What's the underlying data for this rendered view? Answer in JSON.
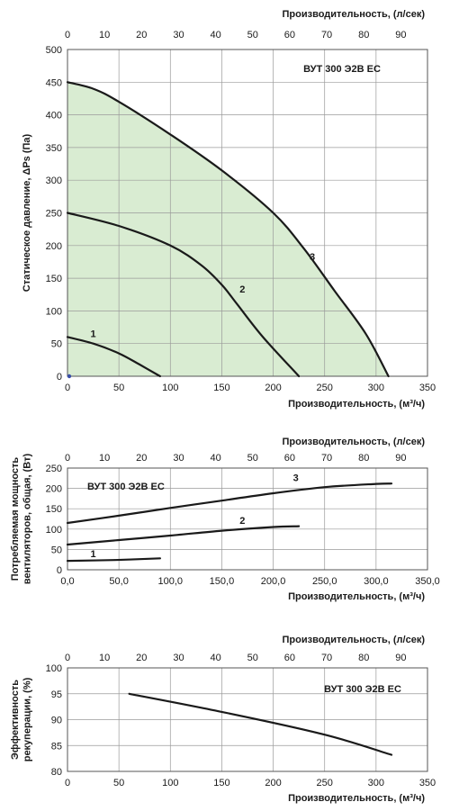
{
  "chart_data": [
    {
      "type": "line",
      "title": "ВУТ 300 Э2В ЕС",
      "xlabel": "Производительность, (м³/ч)",
      "x2label": "Производительность, (л/сек)",
      "ylabel": "Статическое давление, ΔPs (Па)",
      "xlim": [
        0,
        350
      ],
      "ylim": [
        0,
        500
      ],
      "x2lim": [
        0,
        97.2
      ],
      "xticks": [
        "0",
        "50",
        "100",
        "150",
        "200",
        "250",
        "300",
        "350"
      ],
      "x2ticks": [
        "0",
        "10",
        "20",
        "30",
        "40",
        "50",
        "60",
        "70",
        "80",
        "90"
      ],
      "yticks": [
        "0",
        "50",
        "100",
        "150",
        "200",
        "250",
        "300",
        "350",
        "400",
        "450",
        "500"
      ],
      "grid": true,
      "fill_color": "#d9ecd2",
      "series": [
        {
          "name": "1",
          "points": [
            [
              0,
              60
            ],
            [
              25,
              50
            ],
            [
              50,
              35
            ],
            [
              70,
              18
            ],
            [
              90,
              0
            ]
          ]
        },
        {
          "name": "2",
          "points": [
            [
              0,
              250
            ],
            [
              50,
              230
            ],
            [
              100,
              200
            ],
            [
              130,
              170
            ],
            [
              150,
              140
            ],
            [
              165,
              110
            ],
            [
              190,
              60
            ],
            [
              225,
              0
            ]
          ]
        },
        {
          "name": "3",
          "points": [
            [
              0,
              450
            ],
            [
              25,
              440
            ],
            [
              50,
              420
            ],
            [
              100,
              370
            ],
            [
              150,
              315
            ],
            [
              200,
              250
            ],
            [
              230,
              195
            ],
            [
              260,
              130
            ],
            [
              290,
              65
            ],
            [
              312,
              0
            ]
          ]
        }
      ],
      "label_positions": {
        "1": [
          25,
          60
        ],
        "2": [
          170,
          128
        ],
        "3": [
          238,
          178
        ]
      }
    },
    {
      "type": "line",
      "title": "ВУТ 300 Э2В ЕС",
      "xlabel": "Производительность, (м³/ч)",
      "x2label": "Производительность, (л/сек)",
      "ylabel": "Потребляемая мощность вентиляторов, общая, (Вт)",
      "xlim": [
        0,
        350
      ],
      "ylim": [
        0,
        250
      ],
      "x2lim": [
        0,
        97.2
      ],
      "xticks": [
        "0,0",
        "50,0",
        "100,0",
        "150,0",
        "200,0",
        "250,0",
        "300,0",
        "350,0"
      ],
      "x2ticks": [
        "0",
        "10",
        "20",
        "30",
        "40",
        "50",
        "60",
        "70",
        "80",
        "90"
      ],
      "yticks": [
        "0",
        "50",
        "100",
        "150",
        "200",
        "250"
      ],
      "grid": true,
      "series": [
        {
          "name": "1",
          "points": [
            [
              0,
              22
            ],
            [
              45,
              24
            ],
            [
              90,
              28
            ]
          ]
        },
        {
          "name": "2",
          "points": [
            [
              0,
              62
            ],
            [
              50,
              73
            ],
            [
              100,
              84
            ],
            [
              150,
              96
            ],
            [
              200,
              105
            ],
            [
              225,
              107
            ]
          ]
        },
        {
          "name": "3",
          "points": [
            [
              0,
              115
            ],
            [
              50,
              133
            ],
            [
              100,
              152
            ],
            [
              150,
              170
            ],
            [
              200,
              188
            ],
            [
              250,
              203
            ],
            [
              300,
              211
            ],
            [
              315,
              212
            ]
          ]
        }
      ],
      "label_positions": {
        "1": [
          25,
          31
        ],
        "2": [
          170,
          113
        ],
        "3": [
          222,
          218
        ]
      }
    },
    {
      "type": "line",
      "title": "ВУТ 300 Э2В ЕС",
      "xlabel": "Производительность, (м³/ч)",
      "x2label": "Производительность, (л/сек)",
      "ylabel": "Эффективность рекуперации, (%)",
      "xlim": [
        0,
        350
      ],
      "ylim": [
        80,
        100
      ],
      "x2lim": [
        0,
        97.2
      ],
      "xticks": [
        "0",
        "50",
        "100",
        "150",
        "200",
        "250",
        "300",
        "350"
      ],
      "x2ticks": [
        "0",
        "10",
        "20",
        "30",
        "40",
        "50",
        "60",
        "70",
        "80",
        "90"
      ],
      "yticks": [
        "80",
        "85",
        "90",
        "95",
        "100"
      ],
      "grid": true,
      "series": [
        {
          "points": [
            [
              60,
              95
            ],
            [
              150,
              91.5
            ],
            [
              250,
              87.1
            ],
            [
              315,
              83.2
            ]
          ]
        }
      ]
    }
  ]
}
